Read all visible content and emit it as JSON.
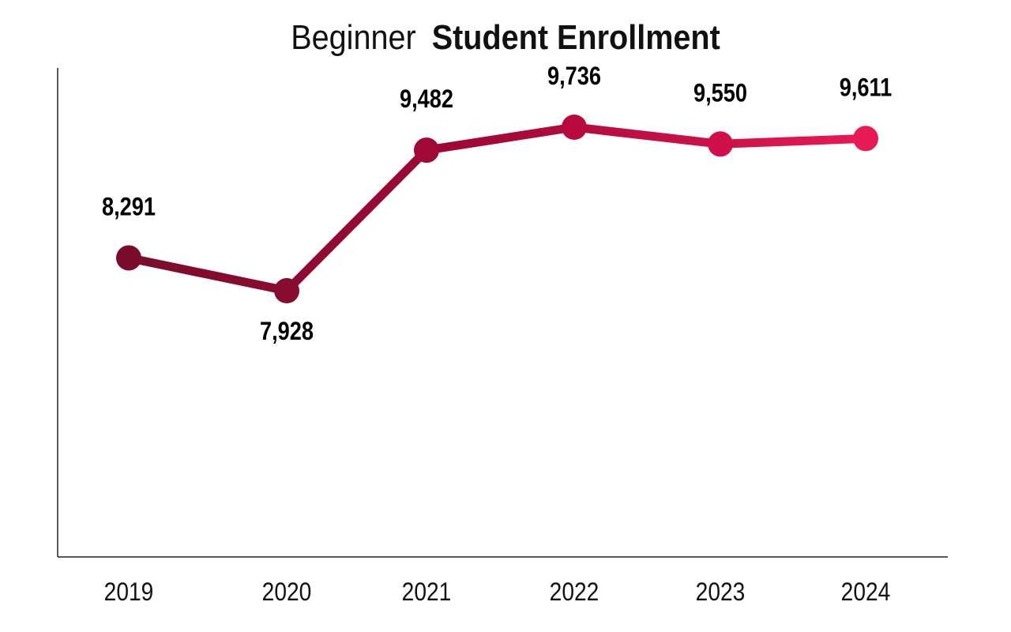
{
  "chart_data": {
    "type": "line",
    "title_prefix": "Beginner",
    "title_main": "Student Enrollment",
    "xlabel": "",
    "ylabel": "",
    "categories": [
      "2019",
      "2020",
      "2021",
      "2022",
      "2023",
      "2024"
    ],
    "values": [
      8291,
      7928,
      9482,
      9736,
      9550,
      9611
    ],
    "data_labels": [
      "8,291",
      "7,928",
      "9,482",
      "9,736",
      "9,550",
      "9,611"
    ],
    "label_positions": [
      "above",
      "below",
      "above",
      "above",
      "above",
      "above"
    ],
    "point_colors": [
      "#7a0c2c",
      "#870c30",
      "#a00836",
      "#b80a3e",
      "#d0104a",
      "#e81a55"
    ],
    "ylim": [
      4985,
      10391
    ],
    "grid": false,
    "legend": "none"
  }
}
